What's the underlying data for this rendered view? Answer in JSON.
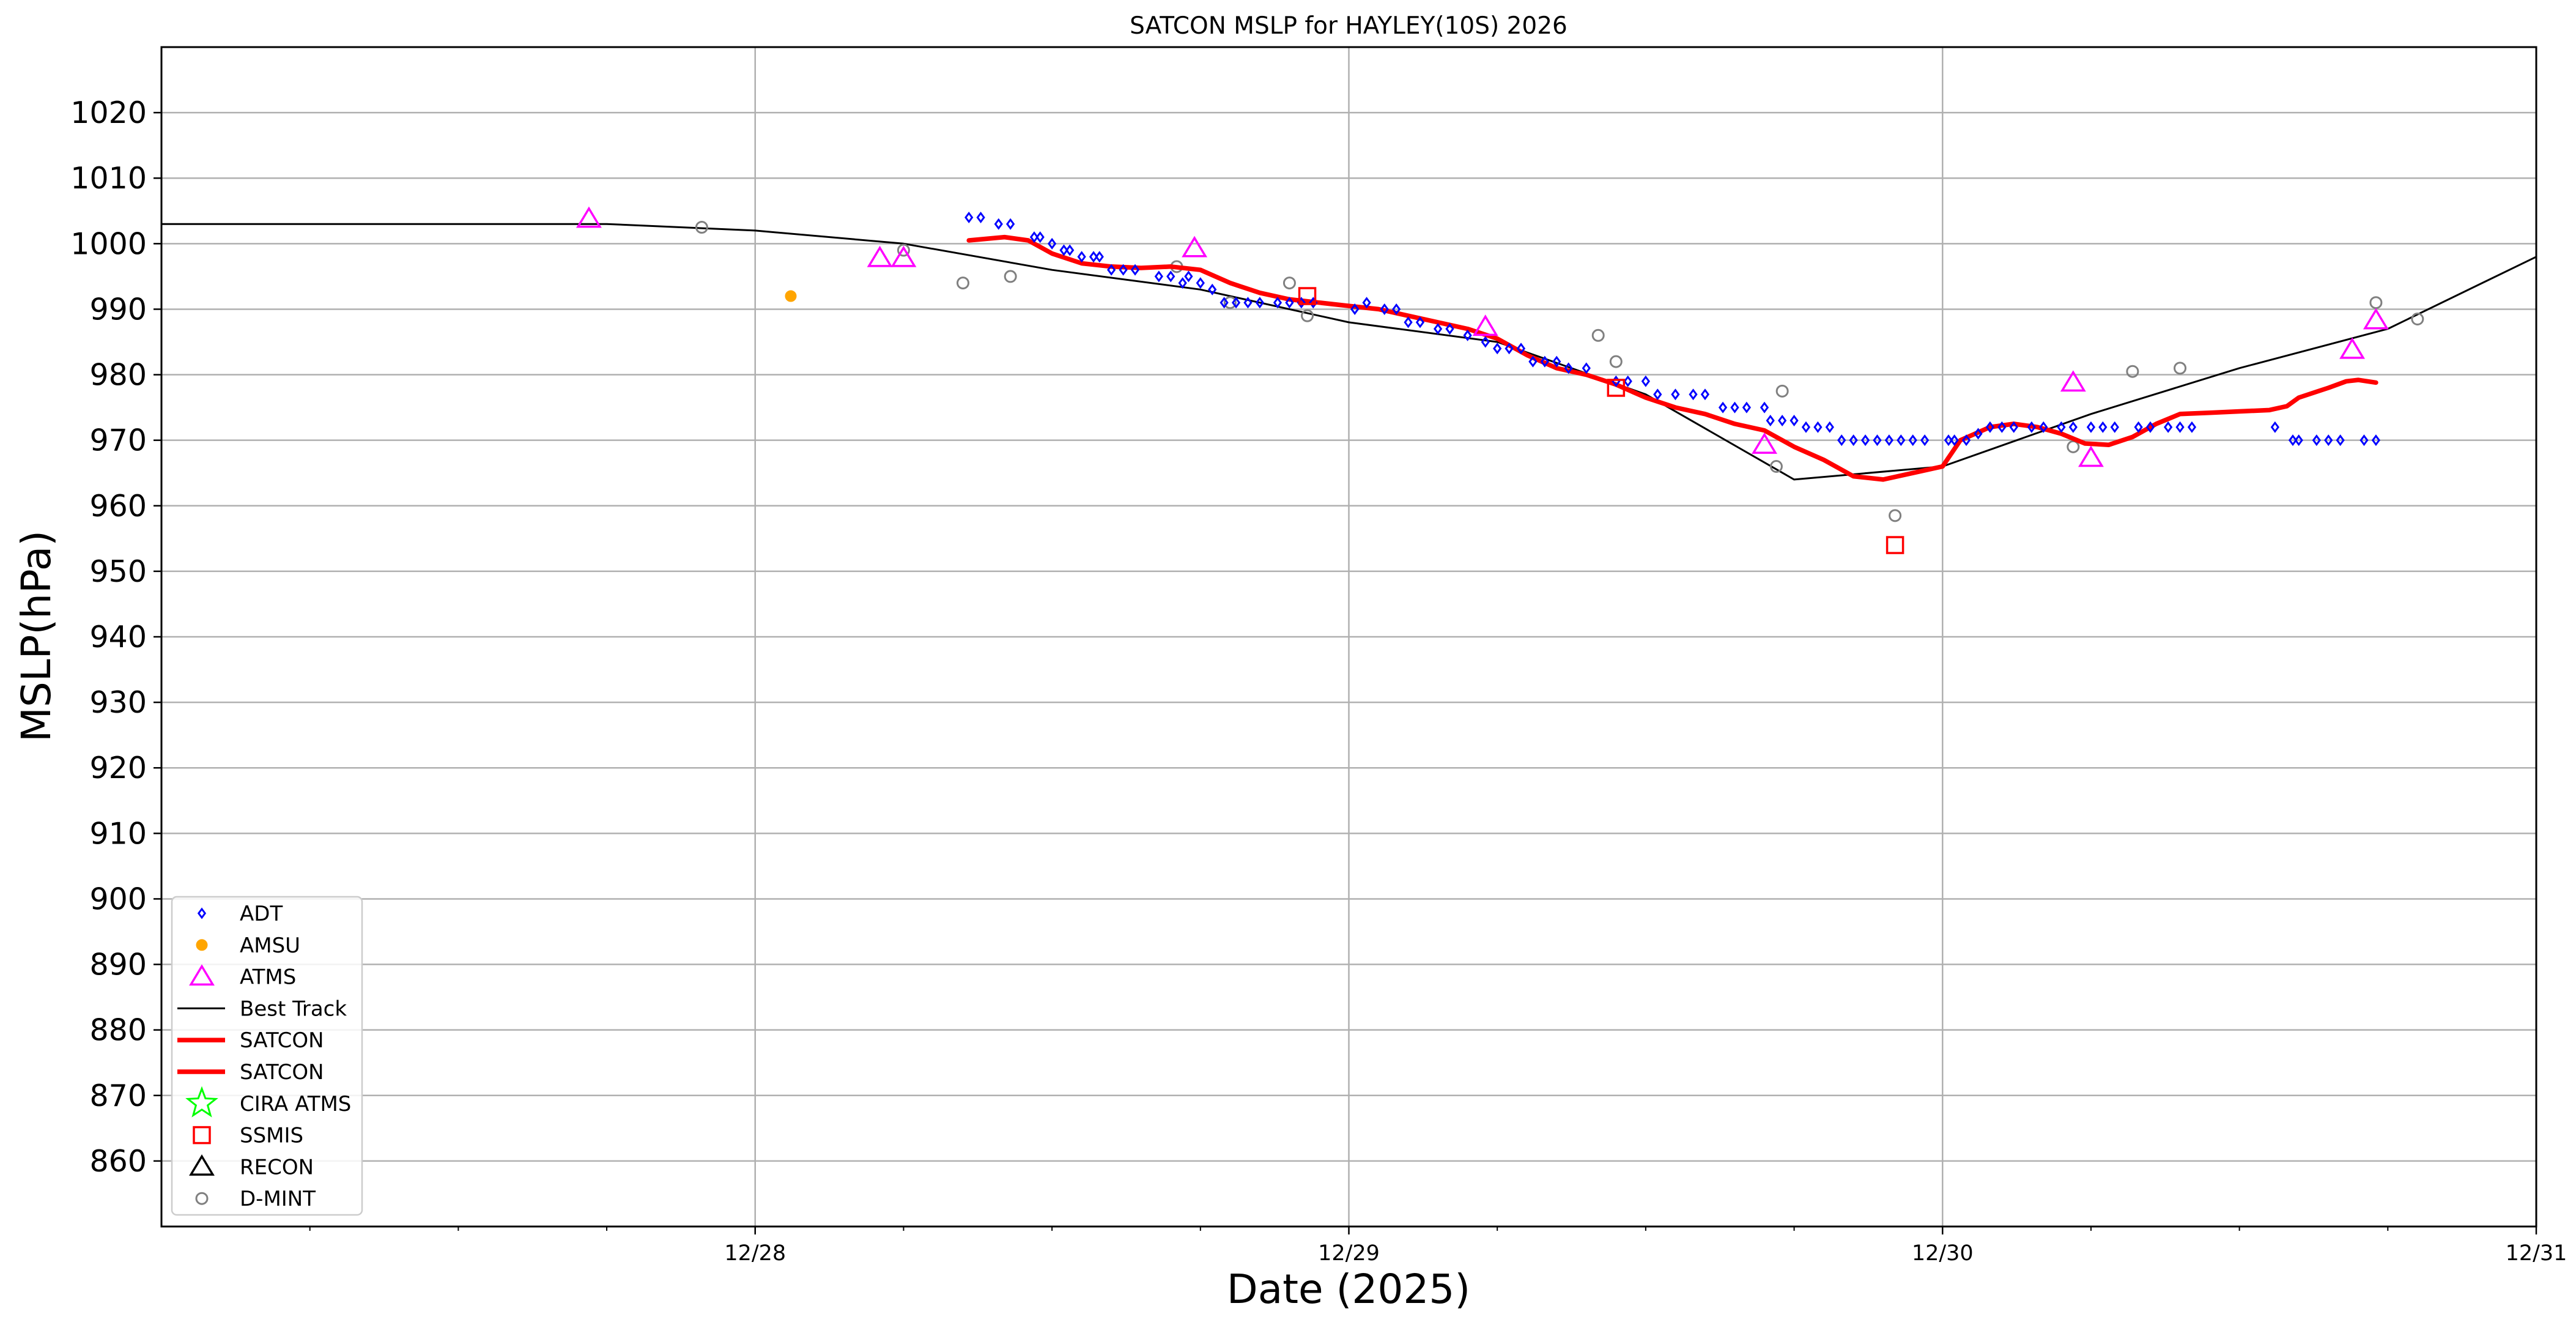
{
  "chart_data": {
    "type": "scatter",
    "title": "SATCON MSLP for HAYLEY(10S) 2026",
    "xlabel": "Date (2025)",
    "ylabel": "MSLP(hPa)",
    "x_units": "days since 12/27 00Z",
    "xlim": [
      0,
      4
    ],
    "ylim": [
      850,
      1030
    ],
    "xticks": [
      {
        "value": 1,
        "label": "12/28"
      },
      {
        "value": 2,
        "label": "12/29"
      },
      {
        "value": 3,
        "label": "12/30"
      },
      {
        "value": 4,
        "label": "12/31"
      }
    ],
    "yticks": [
      860,
      870,
      880,
      890,
      900,
      910,
      920,
      930,
      940,
      950,
      960,
      970,
      980,
      990,
      1000,
      1010,
      1020
    ],
    "grid": true,
    "legend_position": "lower-left",
    "legend": [
      {
        "label": "ADT",
        "marker": "diamond",
        "color": "#0000ff"
      },
      {
        "label": "AMSU",
        "marker": "dot",
        "color": "#ffa500"
      },
      {
        "label": "ATMS",
        "marker": "triangle",
        "color": "#ff00ff"
      },
      {
        "label": "Best Track",
        "marker": "line",
        "color": "#000000"
      },
      {
        "label": "SATCON",
        "marker": "thickline",
        "color": "#ff0000"
      },
      {
        "label": "SATCON",
        "marker": "thickline",
        "color": "#ff0000"
      },
      {
        "label": "CIRA ATMS",
        "marker": "star",
        "color": "#00ff00"
      },
      {
        "label": "SSMIS",
        "marker": "square",
        "color": "#ff0000"
      },
      {
        "label": "RECON",
        "marker": "triangle",
        "color": "#000000"
      },
      {
        "label": "D-MINT",
        "marker": "circle",
        "color": "#808080"
      }
    ],
    "series": {
      "best_track": [
        [
          0,
          1003
        ],
        [
          0.75,
          1003
        ],
        [
          1,
          1002
        ],
        [
          1.25,
          1000
        ],
        [
          1.5,
          996
        ],
        [
          1.75,
          993
        ],
        [
          2,
          988
        ],
        [
          2.25,
          985
        ],
        [
          2.5,
          977
        ],
        [
          2.75,
          964
        ],
        [
          3,
          966
        ],
        [
          3.25,
          974
        ],
        [
          3.5,
          981
        ],
        [
          3.75,
          987
        ],
        [
          4,
          998
        ]
      ],
      "satcon": [
        [
          1.36,
          1000.5
        ],
        [
          1.42,
          1001
        ],
        [
          1.46,
          1000.5
        ],
        [
          1.5,
          998.5
        ],
        [
          1.55,
          997
        ],
        [
          1.6,
          996.5
        ],
        [
          1.65,
          996.3
        ],
        [
          1.7,
          996.5
        ],
        [
          1.75,
          996
        ],
        [
          1.8,
          994
        ],
        [
          1.85,
          992.5
        ],
        [
          1.9,
          991.5
        ],
        [
          1.95,
          991
        ],
        [
          2,
          990.5
        ],
        [
          2.05,
          990
        ],
        [
          2.1,
          989
        ],
        [
          2.15,
          988
        ],
        [
          2.2,
          987
        ],
        [
          2.25,
          985.5
        ],
        [
          2.3,
          983
        ],
        [
          2.35,
          981
        ],
        [
          2.4,
          980
        ],
        [
          2.45,
          978.5
        ],
        [
          2.5,
          976.5
        ],
        [
          2.55,
          975
        ],
        [
          2.6,
          974
        ],
        [
          2.65,
          972.5
        ],
        [
          2.7,
          971.5
        ],
        [
          2.75,
          969
        ],
        [
          2.8,
          967
        ],
        [
          2.85,
          964.5
        ],
        [
          2.9,
          964
        ],
        [
          2.95,
          965
        ],
        [
          3,
          966
        ],
        [
          3.03,
          970
        ],
        [
          3.08,
          972
        ],
        [
          3.12,
          972.5
        ],
        [
          3.16,
          972
        ],
        [
          3.2,
          971
        ],
        [
          3.24,
          969.5
        ],
        [
          3.28,
          969.3
        ],
        [
          3.32,
          970.5
        ],
        [
          3.36,
          972.5
        ],
        [
          3.4,
          974
        ],
        [
          3.45,
          974.2
        ],
        [
          3.5,
          974.4
        ],
        [
          3.55,
          974.6
        ],
        [
          3.58,
          975.2
        ],
        [
          3.6,
          976.5
        ],
        [
          3.65,
          978
        ],
        [
          3.68,
          979
        ],
        [
          3.7,
          979.2
        ],
        [
          3.73,
          978.8
        ]
      ],
      "adt": [
        [
          1.36,
          1004
        ],
        [
          1.38,
          1004
        ],
        [
          1.41,
          1003
        ],
        [
          1.43,
          1003
        ],
        [
          1.47,
          1001
        ],
        [
          1.48,
          1001
        ],
        [
          1.5,
          1000
        ],
        [
          1.52,
          999
        ],
        [
          1.53,
          999
        ],
        [
          1.55,
          998
        ],
        [
          1.57,
          998
        ],
        [
          1.58,
          998
        ],
        [
          1.6,
          996
        ],
        [
          1.62,
          996
        ],
        [
          1.64,
          996
        ],
        [
          1.68,
          995
        ],
        [
          1.7,
          995
        ],
        [
          1.72,
          994
        ],
        [
          1.73,
          995
        ],
        [
          1.75,
          994
        ],
        [
          1.77,
          993
        ],
        [
          1.79,
          991
        ],
        [
          1.81,
          991
        ],
        [
          1.83,
          991
        ],
        [
          1.85,
          991
        ],
        [
          1.88,
          991
        ],
        [
          1.9,
          991
        ],
        [
          1.92,
          991
        ],
        [
          1.94,
          991
        ],
        [
          2.01,
          990
        ],
        [
          2.03,
          991
        ],
        [
          2.06,
          990
        ],
        [
          2.08,
          990
        ],
        [
          2.1,
          988
        ],
        [
          2.12,
          988
        ],
        [
          2.15,
          987
        ],
        [
          2.17,
          987
        ],
        [
          2.2,
          986
        ],
        [
          2.23,
          985
        ],
        [
          2.25,
          984
        ],
        [
          2.27,
          984
        ],
        [
          2.29,
          984
        ],
        [
          2.31,
          982
        ],
        [
          2.33,
          982
        ],
        [
          2.35,
          982
        ],
        [
          2.37,
          981
        ],
        [
          2.4,
          981
        ],
        [
          2.45,
          979
        ],
        [
          2.47,
          979
        ],
        [
          2.5,
          979
        ],
        [
          2.52,
          977
        ],
        [
          2.55,
          977
        ],
        [
          2.58,
          977
        ],
        [
          2.6,
          977
        ],
        [
          2.63,
          975
        ],
        [
          2.65,
          975
        ],
        [
          2.67,
          975
        ],
        [
          2.7,
          975
        ],
        [
          2.71,
          973
        ],
        [
          2.73,
          973
        ],
        [
          2.75,
          973
        ],
        [
          2.77,
          972
        ],
        [
          2.79,
          972
        ],
        [
          2.81,
          972
        ],
        [
          2.83,
          970
        ],
        [
          2.85,
          970
        ],
        [
          2.87,
          970
        ],
        [
          2.89,
          970
        ],
        [
          2.91,
          970
        ],
        [
          2.93,
          970
        ],
        [
          2.95,
          970
        ],
        [
          2.97,
          970
        ],
        [
          3.01,
          970
        ],
        [
          3.02,
          970
        ],
        [
          3.04,
          970
        ],
        [
          3.06,
          971
        ],
        [
          3.08,
          972
        ],
        [
          3.1,
          972
        ],
        [
          3.12,
          972
        ],
        [
          3.15,
          972
        ],
        [
          3.17,
          972
        ],
        [
          3.2,
          972
        ],
        [
          3.22,
          972
        ],
        [
          3.25,
          972
        ],
        [
          3.27,
          972
        ],
        [
          3.29,
          972
        ],
        [
          3.33,
          972
        ],
        [
          3.35,
          972
        ],
        [
          3.38,
          972
        ],
        [
          3.4,
          972
        ],
        [
          3.42,
          972
        ],
        [
          3.56,
          972
        ],
        [
          3.59,
          970
        ],
        [
          3.6,
          970
        ],
        [
          3.63,
          970
        ],
        [
          3.65,
          970
        ],
        [
          3.67,
          970
        ],
        [
          3.71,
          970
        ],
        [
          3.73,
          970
        ]
      ],
      "amsu": [
        [
          1.06,
          992
        ]
      ],
      "atms": [
        [
          0.72,
          1003.5
        ],
        [
          1.21,
          997.5
        ],
        [
          1.25,
          997.5
        ],
        [
          1.74,
          999
        ],
        [
          2.23,
          987
        ],
        [
          2.7,
          969
        ],
        [
          3.22,
          978.5
        ],
        [
          3.25,
          967
        ],
        [
          3.69,
          983.5
        ],
        [
          3.73,
          988
        ]
      ],
      "ssmis": [
        [
          1.93,
          992
        ],
        [
          2.45,
          978
        ],
        [
          2.92,
          954
        ]
      ],
      "dmint": [
        [
          0.91,
          1002.5
        ],
        [
          1.25,
          999
        ],
        [
          1.35,
          994
        ],
        [
          1.43,
          995
        ],
        [
          1.71,
          996.5
        ],
        [
          1.8,
          991
        ],
        [
          1.9,
          994
        ],
        [
          1.93,
          989
        ],
        [
          2.42,
          986
        ],
        [
          2.45,
          982
        ],
        [
          2.72,
          966
        ],
        [
          2.73,
          977.5
        ],
        [
          2.92,
          958.5
        ],
        [
          3.22,
          969
        ],
        [
          3.32,
          980.5
        ],
        [
          3.4,
          981
        ],
        [
          3.73,
          991
        ],
        [
          3.8,
          988.5
        ]
      ]
    }
  }
}
